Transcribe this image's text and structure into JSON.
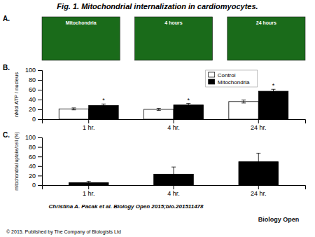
{
  "chart_data": [
    {
      "type": "image",
      "title": "Fig. 1. Mitochondrial internalization in cardiomyocytes.",
      "annotations": [
        "A.",
        "Mitochondria",
        "4 hours",
        "24 hours",
        "Christina A. Pacak et al. Biology Open 2015;bio.201511478",
        "© 2015. Published by The Company of Biologists Ltd",
        "Biology Open"
      ],
      "colors": [
        "#1a6b1a",
        "#1a6b1a",
        "#1a6b1a"
      ]
    },
    {
      "type": "bar",
      "title": "B.",
      "categories": [
        "1 hr.",
        "4 hr.",
        "24 hr."
      ],
      "series": [
        {
          "name": "Control",
          "color": "white",
          "values": [
            21,
            20,
            36
          ],
          "errors": [
            2,
            2,
            3
          ]
        },
        {
          "name": "Mitochondria",
          "color": "black",
          "values": [
            28,
            29,
            57
          ],
          "errors": [
            3,
            3,
            4
          ]
        }
      ],
      "ylabel": "nMol ATP / nucleus",
      "ylim": [
        0,
        100
      ],
      "yticks": [
        0,
        20,
        40,
        60,
        80,
        100
      ],
      "legend": "upper center",
      "annotations": [
        "*",
        "*",
        "*"
      ]
    },
    {
      "type": "bar",
      "title": "C.",
      "categories": [
        "1 hr.",
        "4 hr.",
        "24 hr."
      ],
      "values": [
        5,
        23,
        49
      ],
      "errors": [
        3,
        15,
        18
      ],
      "color": "black",
      "ylabel": "mitochondrial uptake/cell (%)",
      "ylim": [
        0,
        100
      ],
      "yticks": [
        0,
        20,
        40,
        60,
        80,
        100
      ]
    }
  ]
}
